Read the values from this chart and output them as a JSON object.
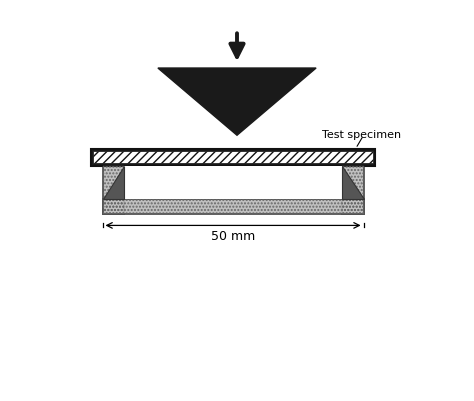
{
  "bg_color": "#ffffff",
  "arrow_color": "#1a1a1a",
  "triangle_color": "#1a1a1a",
  "specimen_edge_color": "#111111",
  "specimen_hatch_color": "#111111",
  "support_face_color": "#c0c0c0",
  "support_edge_color": "#444444",
  "label_text": "Test specimen",
  "dim_text": "50 mm",
  "fig_width": 4.74,
  "fig_height": 4.01,
  "dpi": 100,
  "xlim": [
    0,
    10
  ],
  "ylim": [
    0,
    10
  ]
}
